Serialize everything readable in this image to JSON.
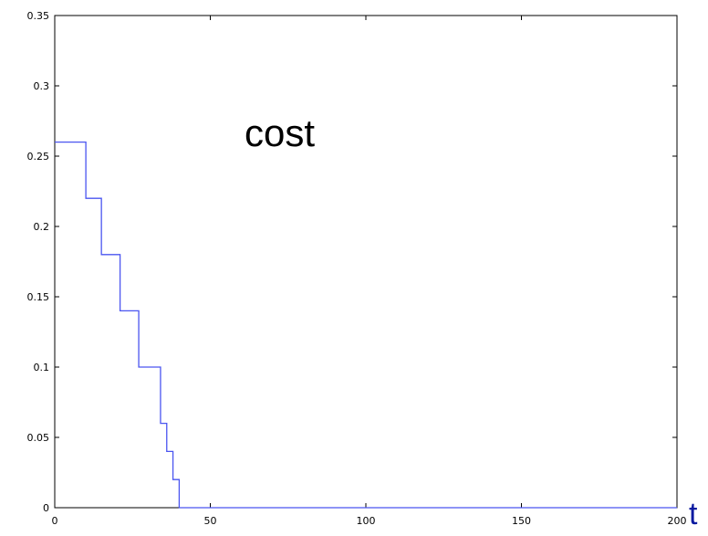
{
  "chart_data": {
    "type": "line",
    "title": "",
    "xlabel": "t",
    "ylabel": "",
    "annotation": "cost",
    "xlim": [
      0,
      200
    ],
    "ylim": [
      0,
      0.35
    ],
    "xticks": [
      0,
      50,
      100,
      150,
      200
    ],
    "xtick_labels": [
      "0",
      "50",
      "100",
      "150",
      "200"
    ],
    "yticks": [
      0,
      0.05,
      0.1,
      0.15,
      0.2,
      0.25,
      0.3,
      0.35
    ],
    "ytick_labels": [
      "0",
      "0.05",
      "0.1",
      "0.15",
      "0.2",
      "0.25",
      "0.3",
      "0.35"
    ],
    "grid": false,
    "step": true,
    "series": [
      {
        "x": [
          0,
          10,
          15,
          21,
          27,
          34,
          36,
          38,
          40,
          41,
          200
        ],
        "y": [
          0.26,
          0.22,
          0.18,
          0.14,
          0.1,
          0.06,
          0.04,
          0.02,
          0.0,
          0.0,
          0.0
        ]
      }
    ],
    "colors": {
      "line": "#4a55f0",
      "axis": "#000000",
      "xlabel": "#0a1aa0"
    }
  }
}
